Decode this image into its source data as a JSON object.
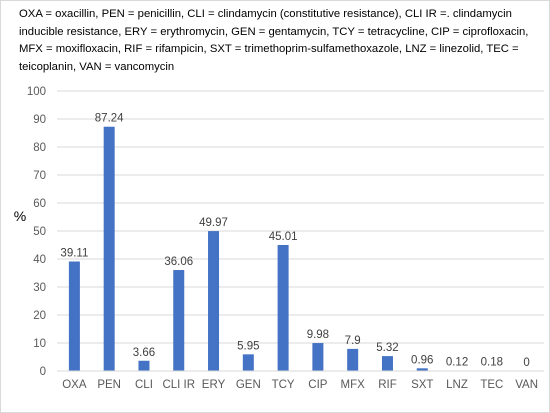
{
  "caption": "OXA = oxacillin, PEN = penicillin, CLI = clindamycin (constitutive resistance), CLI IR =. clindamycin inducible resistance, ERY = erythromycin, GEN = gentamycin, TCY = tetracycline, CIP = ciprofloxacin, MFX = moxifloxacin, RIF = rifampicin, SXT = trimethoprim-sulfamethoxazole, LNZ = linezolid, TEC = teicoplanin, VAN = vancomycin",
  "chart_data": {
    "type": "bar",
    "title": "",
    "xlabel": "",
    "ylabel": "%",
    "categories": [
      "OXA",
      "PEN",
      "CLI",
      "CLI IR",
      "ERY",
      "GEN",
      "TCY",
      "CIP",
      "MFX",
      "RIF",
      "SXT",
      "LNZ",
      "TEC",
      "VAN"
    ],
    "values": [
      39.11,
      87.24,
      3.66,
      36.06,
      49.97,
      5.95,
      45.01,
      9.98,
      7.9,
      5.32,
      0.96,
      0.12,
      0.18,
      0
    ],
    "data_labels": [
      "39.11",
      "87.24",
      "3.66",
      "36.06",
      "49.97",
      "5.95",
      "45.01",
      "9.98",
      "7.9",
      "5.32",
      "0.96",
      "0.12",
      "0.18",
      "0"
    ],
    "ylim": [
      0,
      100
    ],
    "yticks": [
      0,
      10,
      20,
      30,
      40,
      50,
      60,
      70,
      80,
      90,
      100
    ],
    "grid": true,
    "legend": "none",
    "bar_color": "#4472c4",
    "grid_color": "#d9d9d9"
  }
}
